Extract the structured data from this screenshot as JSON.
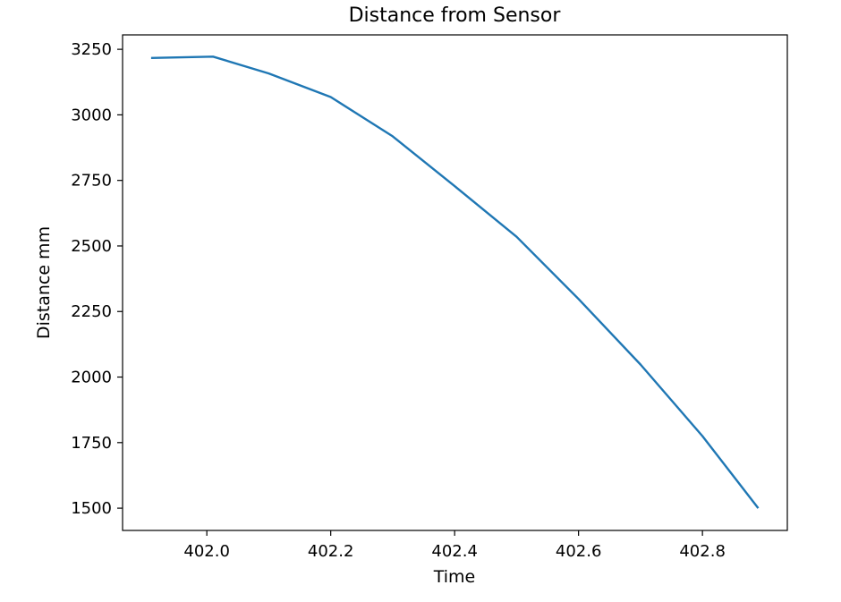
{
  "chart_data": {
    "type": "line",
    "title": "Distance from Sensor",
    "xlabel": "Time",
    "ylabel": "Distance mm",
    "xlim": [
      401.864,
      402.937
    ],
    "ylim": [
      1415,
      3305
    ],
    "grid": false,
    "xticks": [
      402.0,
      402.2,
      402.4,
      402.6,
      402.8
    ],
    "xtick_labels": [
      "402.0",
      "402.2",
      "402.4",
      "402.6",
      "402.8"
    ],
    "yticks": [
      1500,
      1750,
      2000,
      2250,
      2500,
      2750,
      3000,
      3250
    ],
    "ytick_labels": [
      "1500",
      "1750",
      "2000",
      "2250",
      "2500",
      "2750",
      "3000",
      "3250"
    ],
    "series": [
      {
        "color": "#1f77b4",
        "x": [
          401.91,
          402.01,
          402.1,
          402.2,
          402.3,
          402.4,
          402.5,
          402.6,
          402.7,
          402.8,
          402.89
        ],
        "y": [
          3217,
          3222,
          3158,
          3068,
          2918,
          2728,
          2535,
          2298,
          2048,
          1775,
          1500
        ]
      }
    ]
  }
}
